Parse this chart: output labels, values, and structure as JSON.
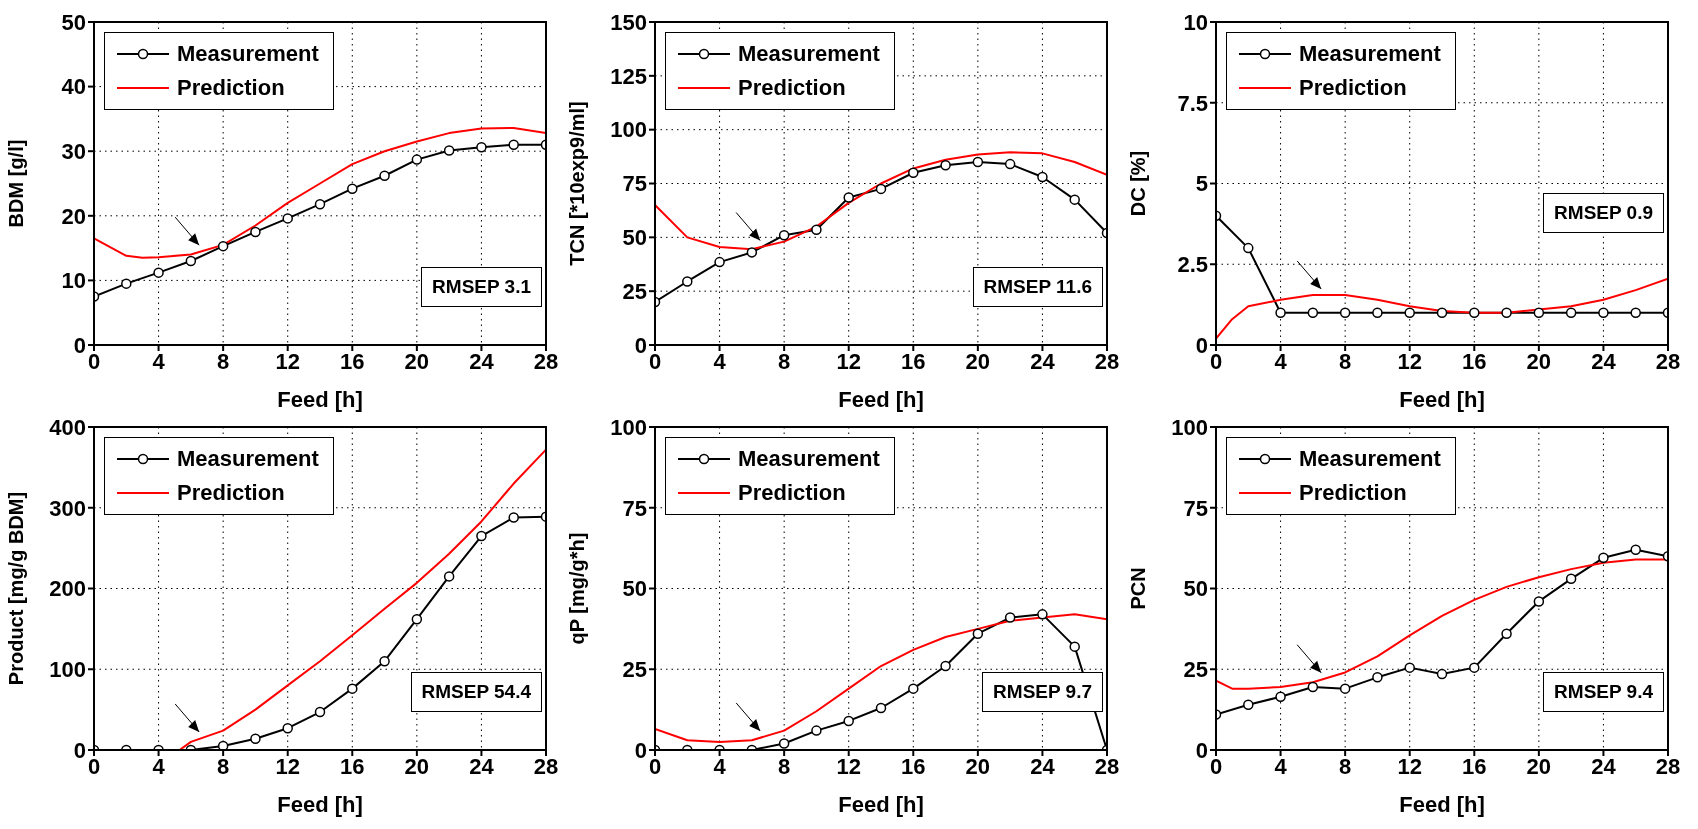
{
  "chart_data": [
    {
      "type": "line",
      "xlabel": "Feed [h]",
      "ylabel": "BDM [g/l]",
      "xlim": [
        0,
        28
      ],
      "xticks": [
        0,
        4,
        8,
        12,
        16,
        20,
        24,
        28
      ],
      "ylim": [
        0,
        50
      ],
      "yticks": [
        0,
        10,
        20,
        30,
        40,
        50
      ],
      "grid": true,
      "legend": "top left",
      "annotations": [
        "RMSEP 3.1"
      ],
      "series": [
        {
          "name": "Measurement",
          "color": "#000000",
          "marker": "circle",
          "x": [
            0,
            2,
            4,
            6,
            8,
            10,
            12,
            14,
            16,
            18,
            20,
            22,
            24,
            26,
            28
          ],
          "values": [
            7.5,
            9.5,
            11.2,
            13,
            15.3,
            17.5,
            19.6,
            21.8,
            24.2,
            26.2,
            28.7,
            30.1,
            30.6,
            31,
            31
          ]
        },
        {
          "name": "Prediction",
          "color": "#ff0000",
          "marker": "none",
          "x": [
            0,
            2,
            3,
            4,
            6,
            8,
            10,
            12,
            14,
            16,
            18,
            20,
            22,
            24,
            26,
            28
          ],
          "values": [
            16.5,
            13.8,
            13.5,
            13.6,
            14,
            15.5,
            18.5,
            22,
            25,
            28,
            30,
            31.5,
            32.8,
            33.5,
            33.6,
            32.8
          ]
        }
      ]
    },
    {
      "type": "line",
      "xlabel": "Feed [h]",
      "ylabel": "TCN [*10exp9/ml]",
      "xlim": [
        0,
        28
      ],
      "xticks": [
        0,
        4,
        8,
        12,
        16,
        20,
        24,
        28
      ],
      "ylim": [
        0,
        150
      ],
      "yticks": [
        0,
        25,
        50,
        75,
        100,
        125,
        150
      ],
      "grid": true,
      "legend": "top left",
      "annotations": [
        "RMSEP 11.6"
      ],
      "series": [
        {
          "name": "Measurement",
          "color": "#000000",
          "marker": "circle",
          "x": [
            0,
            2,
            4,
            6,
            8,
            10,
            12,
            14,
            16,
            18,
            20,
            22,
            24,
            26,
            28
          ],
          "values": [
            20,
            29.5,
            38.5,
            43,
            51,
            53.5,
            68.5,
            72.5,
            80,
            83.5,
            85,
            84,
            78,
            67.5,
            52
          ]
        },
        {
          "name": "Prediction",
          "color": "#ff0000",
          "marker": "none",
          "x": [
            0,
            2,
            4,
            6,
            8,
            10,
            12,
            14,
            16,
            18,
            20,
            22,
            24,
            26,
            28
          ],
          "values": [
            65,
            50,
            45.5,
            44.5,
            48,
            55,
            66,
            75,
            82,
            86,
            88.5,
            89.5,
            89,
            85,
            79
          ]
        }
      ]
    },
    {
      "type": "line",
      "xlabel": "Feed [h]",
      "ylabel": "DC [%]",
      "xlim": [
        0,
        28
      ],
      "xticks": [
        0,
        4,
        8,
        12,
        16,
        20,
        24,
        28
      ],
      "ylim": [
        0,
        10
      ],
      "yticks": [
        0,
        2.5,
        5,
        7.5,
        10
      ],
      "grid": true,
      "legend": "top left",
      "annotations": [
        "RMSEP 0.9"
      ],
      "series": [
        {
          "name": "Measurement",
          "color": "#000000",
          "marker": "circle",
          "x": [
            0,
            2,
            4,
            6,
            8,
            10,
            12,
            14,
            16,
            18,
            20,
            22,
            24,
            26,
            28
          ],
          "values": [
            4,
            3,
            1,
            1,
            1,
            1,
            1,
            1,
            1,
            1,
            1,
            1,
            1,
            1,
            1
          ]
        },
        {
          "name": "Prediction",
          "color": "#ff0000",
          "marker": "none",
          "x": [
            0,
            1,
            2,
            4,
            6,
            8,
            10,
            12,
            14,
            16,
            18,
            20,
            22,
            24,
            26,
            28
          ],
          "values": [
            0.2,
            0.8,
            1.2,
            1.4,
            1.55,
            1.55,
            1.4,
            1.2,
            1.05,
            1,
            1,
            1.1,
            1.2,
            1.4,
            1.7,
            2.05
          ]
        }
      ]
    },
    {
      "type": "line",
      "xlabel": "Feed [h]",
      "ylabel": "Product [mg/g BDM]",
      "xlim": [
        0,
        28
      ],
      "xticks": [
        0,
        4,
        8,
        12,
        16,
        20,
        24,
        28
      ],
      "ylim": [
        0,
        400
      ],
      "yticks": [
        0,
        100,
        200,
        300,
        400
      ],
      "grid": true,
      "legend": "top left",
      "annotations": [
        "RMSEP 54.4"
      ],
      "series": [
        {
          "name": "Measurement",
          "color": "#000000",
          "marker": "circle",
          "x": [
            0,
            2,
            4,
            6,
            8,
            10,
            12,
            14,
            16,
            18,
            20,
            22,
            24,
            26,
            28
          ],
          "values": [
            0,
            0,
            0,
            0,
            5,
            14,
            27,
            47,
            76,
            110,
            162,
            215,
            265,
            288,
            289
          ]
        },
        {
          "name": "Prediction",
          "color": "#ff0000",
          "marker": "none",
          "x": [
            5.3,
            6,
            8,
            10,
            12,
            14,
            16,
            18,
            20,
            22,
            24,
            26,
            28
          ],
          "values": [
            0,
            10,
            24,
            50,
            80,
            110,
            142,
            175,
            207,
            243,
            283,
            330,
            372
          ]
        }
      ]
    },
    {
      "type": "line",
      "xlabel": "Feed [h]",
      "ylabel": "qP [mg/g*h]",
      "xlim": [
        0,
        28
      ],
      "xticks": [
        0,
        4,
        8,
        12,
        16,
        20,
        24,
        28
      ],
      "ylim": [
        0,
        100
      ],
      "yticks": [
        0,
        25,
        50,
        75,
        100
      ],
      "grid": true,
      "legend": "top left",
      "annotations": [
        "RMSEP 9.7"
      ],
      "series": [
        {
          "name": "Measurement",
          "color": "#000000",
          "marker": "circle",
          "x": [
            0,
            2,
            4,
            6,
            8,
            10,
            12,
            14,
            16,
            18,
            20,
            22,
            24,
            26,
            28
          ],
          "values": [
            0,
            0,
            0,
            0,
            2,
            6,
            9,
            13,
            19,
            26,
            36,
            41,
            42,
            32,
            0
          ]
        },
        {
          "name": "Prediction",
          "color": "#ff0000",
          "marker": "none",
          "x": [
            0,
            2,
            4,
            6,
            8,
            10,
            12,
            14,
            16,
            18,
            20,
            22,
            24,
            26,
            28
          ],
          "values": [
            6.5,
            3,
            2.5,
            3,
            6,
            12,
            19,
            26,
            31,
            35,
            37.5,
            40,
            41,
            42,
            40.5
          ]
        }
      ]
    },
    {
      "type": "line",
      "xlabel": "Feed [h]",
      "ylabel": "PCN",
      "xlim": [
        0,
        28
      ],
      "xticks": [
        0,
        4,
        8,
        12,
        16,
        20,
        24,
        28
      ],
      "ylim": [
        0,
        100
      ],
      "yticks": [
        0,
        25,
        50,
        75,
        100
      ],
      "grid": true,
      "legend": "top left",
      "annotations": [
        "RMSEP 9.4"
      ],
      "series": [
        {
          "name": "Measurement",
          "color": "#000000",
          "marker": "circle",
          "x": [
            0,
            2,
            4,
            6,
            8,
            10,
            12,
            14,
            16,
            18,
            20,
            22,
            24,
            26,
            28
          ],
          "values": [
            11,
            14,
            16.5,
            19.5,
            19,
            22.5,
            25.5,
            23.5,
            25.5,
            36,
            46,
            53,
            59.5,
            62,
            60
          ]
        },
        {
          "name": "Prediction",
          "color": "#ff0000",
          "marker": "none",
          "x": [
            0,
            1,
            2,
            4,
            6,
            8,
            10,
            12,
            14,
            16,
            18,
            20,
            22,
            24,
            26,
            28
          ],
          "values": [
            21.5,
            19,
            19,
            19.5,
            21,
            24,
            29,
            35.5,
            41.5,
            46.5,
            50.5,
            53.5,
            56,
            58,
            59,
            59
          ]
        }
      ]
    }
  ]
}
